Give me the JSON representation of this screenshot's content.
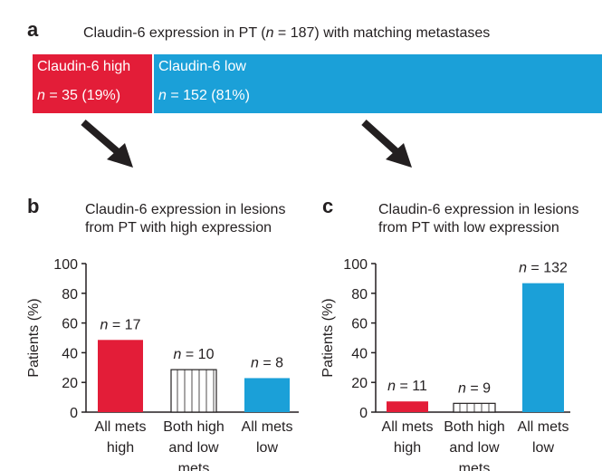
{
  "panel_a": {
    "letter": "a",
    "title": "Claudin-6 expression in PT (n = 187) with matching metastases",
    "title_parts": [
      "Claudin-6 expression in PT (",
      "n",
      " = 187) with matching metastases"
    ],
    "high": {
      "label": "Claudin-6 high",
      "n_value": " = 35 (19%)",
      "fraction": 0.19,
      "color": "#e31d38"
    },
    "low": {
      "label": "Claudin-6 low",
      "n_value": " = 152 (81%)",
      "fraction": 0.81,
      "color": "#1ba0d8"
    }
  },
  "panel_b": {
    "letter": "b",
    "title_line1": "Claudin-6 expression in lesions",
    "title_line2": "from PT with high expression"
  },
  "panel_c": {
    "letter": "c",
    "title_line1": "Claudin-6 expression in lesions",
    "title_line2": "from PT with low expression"
  },
  "colors": {
    "high": "#e31d38",
    "low": "#1ba0d8",
    "axis": "#231f20",
    "arrow": "#231f20"
  },
  "chart_data": [
    {
      "type": "bar",
      "panel": "b",
      "ylabel": "Patients (%)",
      "ylim": [
        0,
        100
      ],
      "yticks": [
        0,
        20,
        40,
        60,
        80,
        100
      ],
      "categories": [
        [
          "All mets",
          "high"
        ],
        [
          "Both high",
          "and low",
          "mets"
        ],
        [
          "All mets",
          "low"
        ]
      ],
      "values": [
        48.6,
        28.6,
        22.9
      ],
      "n_labels": [
        " = 17",
        " = 10",
        " = 8"
      ],
      "fills": [
        "high",
        "striped",
        "low"
      ]
    },
    {
      "type": "bar",
      "panel": "c",
      "ylabel": "Patients (%)",
      "ylim": [
        0,
        100
      ],
      "yticks": [
        0,
        20,
        40,
        60,
        80,
        100
      ],
      "categories": [
        [
          "All mets",
          "high"
        ],
        [
          "Both high",
          "and low",
          "mets"
        ],
        [
          "All mets",
          "low"
        ]
      ],
      "values": [
        7.2,
        5.9,
        86.8
      ],
      "n_labels": [
        " = 11",
        " = 9",
        " = 132"
      ],
      "fills": [
        "high",
        "striped",
        "low"
      ]
    }
  ]
}
